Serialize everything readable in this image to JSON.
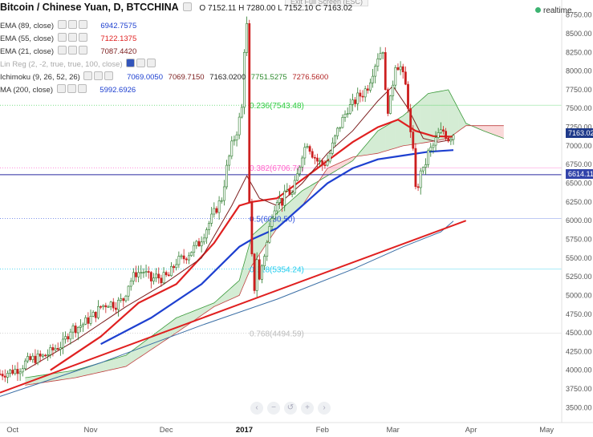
{
  "header": {
    "symbol": "Bitcoin / Chinese Yuan, D, BTCCHINA",
    "ohlc": "O 7152.11  H 7280.00  L 7152.10  C 7163.02"
  },
  "exit_fullscreen": "Exit Full Screen (ESC)",
  "realtime_label": "realtime",
  "indicators": [
    {
      "label": "EMA (89, close)",
      "value": "6942.7575",
      "color": "#1e40d0"
    },
    {
      "label": "EMA (55, close)",
      "value": "7122.1375",
      "color": "#e02020"
    },
    {
      "label": "EMA (21, close)",
      "value": "7087.4420",
      "color": "#7b1d1d"
    },
    {
      "label": "Lin Reg (2, -2, true, true, 100, close)",
      "value": "",
      "color": "#999999"
    },
    {
      "label": "Ichimoku (9, 26, 52, 26)",
      "values": [
        "7069.0050",
        "7069.7150",
        "7163.0200",
        "7751.5275",
        "7276.5600"
      ],
      "colors": [
        "#1e40d0",
        "#7b1d1d",
        "#222222",
        "#2e8b2e",
        "#b22222"
      ]
    },
    {
      "label": "MA (200, close)",
      "value": "5992.6926",
      "color": "#1e40d0"
    }
  ],
  "price_tags": [
    {
      "value": "7163.02",
      "price": 7163.02,
      "color": "#1f3a8a"
    },
    {
      "value": "6614.11",
      "price": 6614.11,
      "color": "#3344aa"
    }
  ],
  "fib_levels": [
    {
      "label": "0.236(7543.48)",
      "price": 7543.48,
      "color": "#2ecc40"
    },
    {
      "label": "0.382(6706.76)",
      "price": 6706.76,
      "color": "#ff66cc"
    },
    {
      "label": "0.5(6030.50)",
      "price": 6030.5,
      "color": "#3355dd"
    },
    {
      "label": "0.618(5354.24)",
      "price": 5354.24,
      "color": "#22ccee"
    },
    {
      "label": "0.768(4494.59)",
      "price": 4494.59,
      "color": "#bbbbbb"
    }
  ],
  "horizontal_line": {
    "price": 6614.11,
    "color": "#2a2aa0"
  },
  "chart_data": {
    "type": "candlestick",
    "title": "Bitcoin / Chinese Yuan, D, BTCCHINA",
    "y_ticks": [
      3500,
      3750,
      4000,
      4250,
      4500,
      4750,
      5000,
      5250,
      5500,
      5750,
      6000,
      6250,
      6500,
      6750,
      7000,
      7250,
      7500,
      7750,
      8000,
      8250,
      8500,
      8750
    ],
    "y_tick_labels": [
      "3500.00",
      "3750.00",
      "4000.00",
      "4250.00",
      "4500.00",
      "4750.00",
      "5000.00",
      "5250.00",
      "5500.00",
      "5750.00",
      "6000.00",
      "6250.00",
      "6500.00",
      "6750.00",
      "7000.00",
      "7250.00",
      "7500.00",
      "7750.00",
      "8000.00",
      "8250.00",
      "8500.00",
      "8750.00"
    ],
    "x_labels": [
      "Oct",
      "Nov",
      "Dec",
      "2017",
      "Feb",
      "Mar",
      "Apr",
      "May"
    ],
    "x_label_bars": [
      5,
      36,
      66,
      97,
      128,
      156,
      187,
      217
    ],
    "ylim": [
      3300,
      8950
    ],
    "grid": false,
    "close_points": [
      [
        0,
        3950
      ],
      [
        4,
        3980
      ],
      [
        8,
        4030
      ],
      [
        10,
        4100
      ],
      [
        13,
        4150
      ],
      [
        17,
        4180
      ],
      [
        20,
        4240
      ],
      [
        22,
        4300
      ],
      [
        25,
        4350
      ],
      [
        28,
        4550
      ],
      [
        31,
        4580
      ],
      [
        33,
        4620
      ],
      [
        36,
        4700
      ],
      [
        38,
        4760
      ],
      [
        40,
        4850
      ],
      [
        43,
        4900
      ],
      [
        46,
        4880
      ],
      [
        49,
        4950
      ],
      [
        51,
        5150
      ],
      [
        54,
        5300
      ],
      [
        57,
        5320
      ],
      [
        60,
        5200
      ],
      [
        62,
        5250
      ],
      [
        64,
        5230
      ],
      [
        67,
        5260
      ],
      [
        70,
        5450
      ],
      [
        73,
        5500
      ],
      [
        76,
        5600
      ],
      [
        79,
        5700
      ],
      [
        82,
        5900
      ],
      [
        85,
        6100
      ],
      [
        88,
        6300
      ],
      [
        90,
        6700
      ],
      [
        92,
        7000
      ],
      [
        94,
        7200
      ],
      [
        96,
        7500
      ],
      [
        97,
        8300
      ],
      [
        98,
        8600
      ],
      [
        99,
        6200
      ],
      [
        100,
        5500
      ],
      [
        101,
        5100
      ],
      [
        102,
        5500
      ],
      [
        103,
        5200
      ],
      [
        104,
        5400
      ],
      [
        106,
        5700
      ],
      [
        108,
        6100
      ],
      [
        110,
        6300
      ],
      [
        112,
        6250
      ],
      [
        114,
        6400
      ],
      [
        116,
        6350
      ],
      [
        118,
        6600
      ],
      [
        120,
        6900
      ],
      [
        122,
        7050
      ],
      [
        124,
        6900
      ],
      [
        126,
        6800
      ],
      [
        128,
        6750
      ],
      [
        130,
        6800
      ],
      [
        132,
        7000
      ],
      [
        134,
        7200
      ],
      [
        136,
        7350
      ],
      [
        138,
        7500
      ],
      [
        140,
        7550
      ],
      [
        142,
        7650
      ],
      [
        144,
        7700
      ],
      [
        146,
        7800
      ],
      [
        148,
        8000
      ],
      [
        150,
        8200
      ],
      [
        152,
        8300
      ],
      [
        153,
        7700
      ],
      [
        154,
        7500
      ],
      [
        155,
        7600
      ],
      [
        157,
        8100
      ],
      [
        159,
        8050
      ],
      [
        161,
        7800
      ],
      [
        162,
        7550
      ],
      [
        163,
        7150
      ],
      [
        164,
        6900
      ],
      [
        165,
        6500
      ],
      [
        166,
        6400
      ],
      [
        167,
        6700
      ],
      [
        168,
        6650
      ],
      [
        170,
        6900
      ],
      [
        172,
        7000
      ],
      [
        174,
        7150
      ],
      [
        176,
        7200
      ],
      [
        178,
        7100
      ],
      [
        180,
        7163
      ]
    ],
    "series": [
      {
        "name": "EMA (89, close)",
        "color": "#1e40d0",
        "points": [
          [
            40,
            4350
          ],
          [
            60,
            4700
          ],
          [
            80,
            5150
          ],
          [
            95,
            5650
          ],
          [
            100,
            5750
          ],
          [
            110,
            5900
          ],
          [
            120,
            6200
          ],
          [
            130,
            6500
          ],
          [
            140,
            6700
          ],
          [
            150,
            6820
          ],
          [
            160,
            6870
          ],
          [
            170,
            6920
          ],
          [
            180,
            6943
          ]
        ]
      },
      {
        "name": "EMA (55, close)",
        "color": "#e02020",
        "points": [
          [
            20,
            4000
          ],
          [
            40,
            4450
          ],
          [
            55,
            4900
          ],
          [
            70,
            5150
          ],
          [
            85,
            5700
          ],
          [
            95,
            6200
          ],
          [
            100,
            6250
          ],
          [
            110,
            6300
          ],
          [
            120,
            6550
          ],
          [
            130,
            6800
          ],
          [
            140,
            7050
          ],
          [
            150,
            7250
          ],
          [
            158,
            7350
          ],
          [
            165,
            7200
          ],
          [
            172,
            7130
          ],
          [
            180,
            7122
          ]
        ]
      },
      {
        "name": "EMA (21, close)",
        "color": "#7b1d1d",
        "points": [
          [
            10,
            4000
          ],
          [
            30,
            4400
          ],
          [
            50,
            4850
          ],
          [
            65,
            5150
          ],
          [
            80,
            5500
          ],
          [
            92,
            6200
          ],
          [
            98,
            6600
          ],
          [
            103,
            6300
          ],
          [
            110,
            6200
          ],
          [
            120,
            6500
          ],
          [
            130,
            6900
          ],
          [
            140,
            7200
          ],
          [
            150,
            7600
          ],
          [
            156,
            7800
          ],
          [
            162,
            7500
          ],
          [
            168,
            7100
          ],
          [
            174,
            7050
          ],
          [
            180,
            7087
          ]
        ]
      },
      {
        "name": "MA (200, close)",
        "color": "#3a6ea5",
        "points": [
          [
            0,
            3650
          ],
          [
            40,
            4100
          ],
          [
            80,
            4600
          ],
          [
            110,
            4950
          ],
          [
            140,
            5350
          ],
          [
            160,
            5650
          ],
          [
            175,
            5850
          ],
          [
            180,
            5993
          ]
        ]
      },
      {
        "name": "Lin Reg (2, -2, true, true, 100, close)",
        "color": "#e02020",
        "points": [
          [
            0,
            3700
          ],
          [
            185,
            6000
          ]
        ]
      }
    ],
    "cloud": {
      "span_a": [
        [
          10,
          3900
        ],
        [
          30,
          4000
        ],
        [
          50,
          4200
        ],
        [
          70,
          4700
        ],
        [
          85,
          4900
        ],
        [
          95,
          5200
        ],
        [
          100,
          5800
        ],
        [
          110,
          6100
        ],
        [
          120,
          6400
        ],
        [
          130,
          6600
        ],
        [
          140,
          6800
        ],
        [
          150,
          7200
        ],
        [
          160,
          7400
        ],
        [
          170,
          7700
        ],
        [
          178,
          7750
        ],
        [
          185,
          7300
        ],
        [
          192,
          7200
        ],
        [
          200,
          7100
        ]
      ],
      "span_b": [
        [
          10,
          3800
        ],
        [
          30,
          3900
        ],
        [
          50,
          4050
        ],
        [
          70,
          4500
        ],
        [
          85,
          4850
        ],
        [
          95,
          5000
        ],
        [
          100,
          5400
        ],
        [
          110,
          5900
        ],
        [
          120,
          6200
        ],
        [
          130,
          6700
        ],
        [
          140,
          6850
        ],
        [
          150,
          6900
        ],
        [
          160,
          7000
        ],
        [
          170,
          7050
        ],
        [
          178,
          7100
        ],
        [
          185,
          7270
        ],
        [
          192,
          7270
        ],
        [
          200,
          7270
        ]
      ]
    }
  }
}
